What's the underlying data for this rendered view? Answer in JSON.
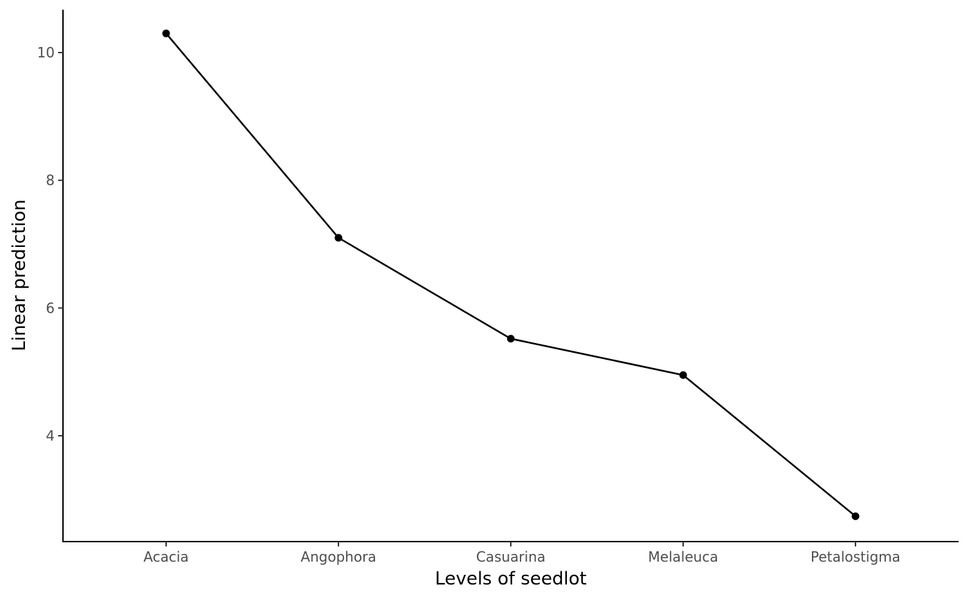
{
  "chart_data": {
    "type": "line",
    "categories": [
      "Acacia",
      "Angophora",
      "Casuarina",
      "Melaleuca",
      "Petalostigma"
    ],
    "values": [
      10.3,
      7.1,
      5.52,
      4.95,
      2.74
    ],
    "xlabel": "Levels of seedlot",
    "ylabel": "Linear prediction",
    "yticks": [
      4,
      6,
      8,
      10
    ],
    "ylim": [
      2.5,
      10.65
    ],
    "grid": false,
    "legend": "none",
    "line_color": "#000000",
    "point_color": "#000000"
  }
}
